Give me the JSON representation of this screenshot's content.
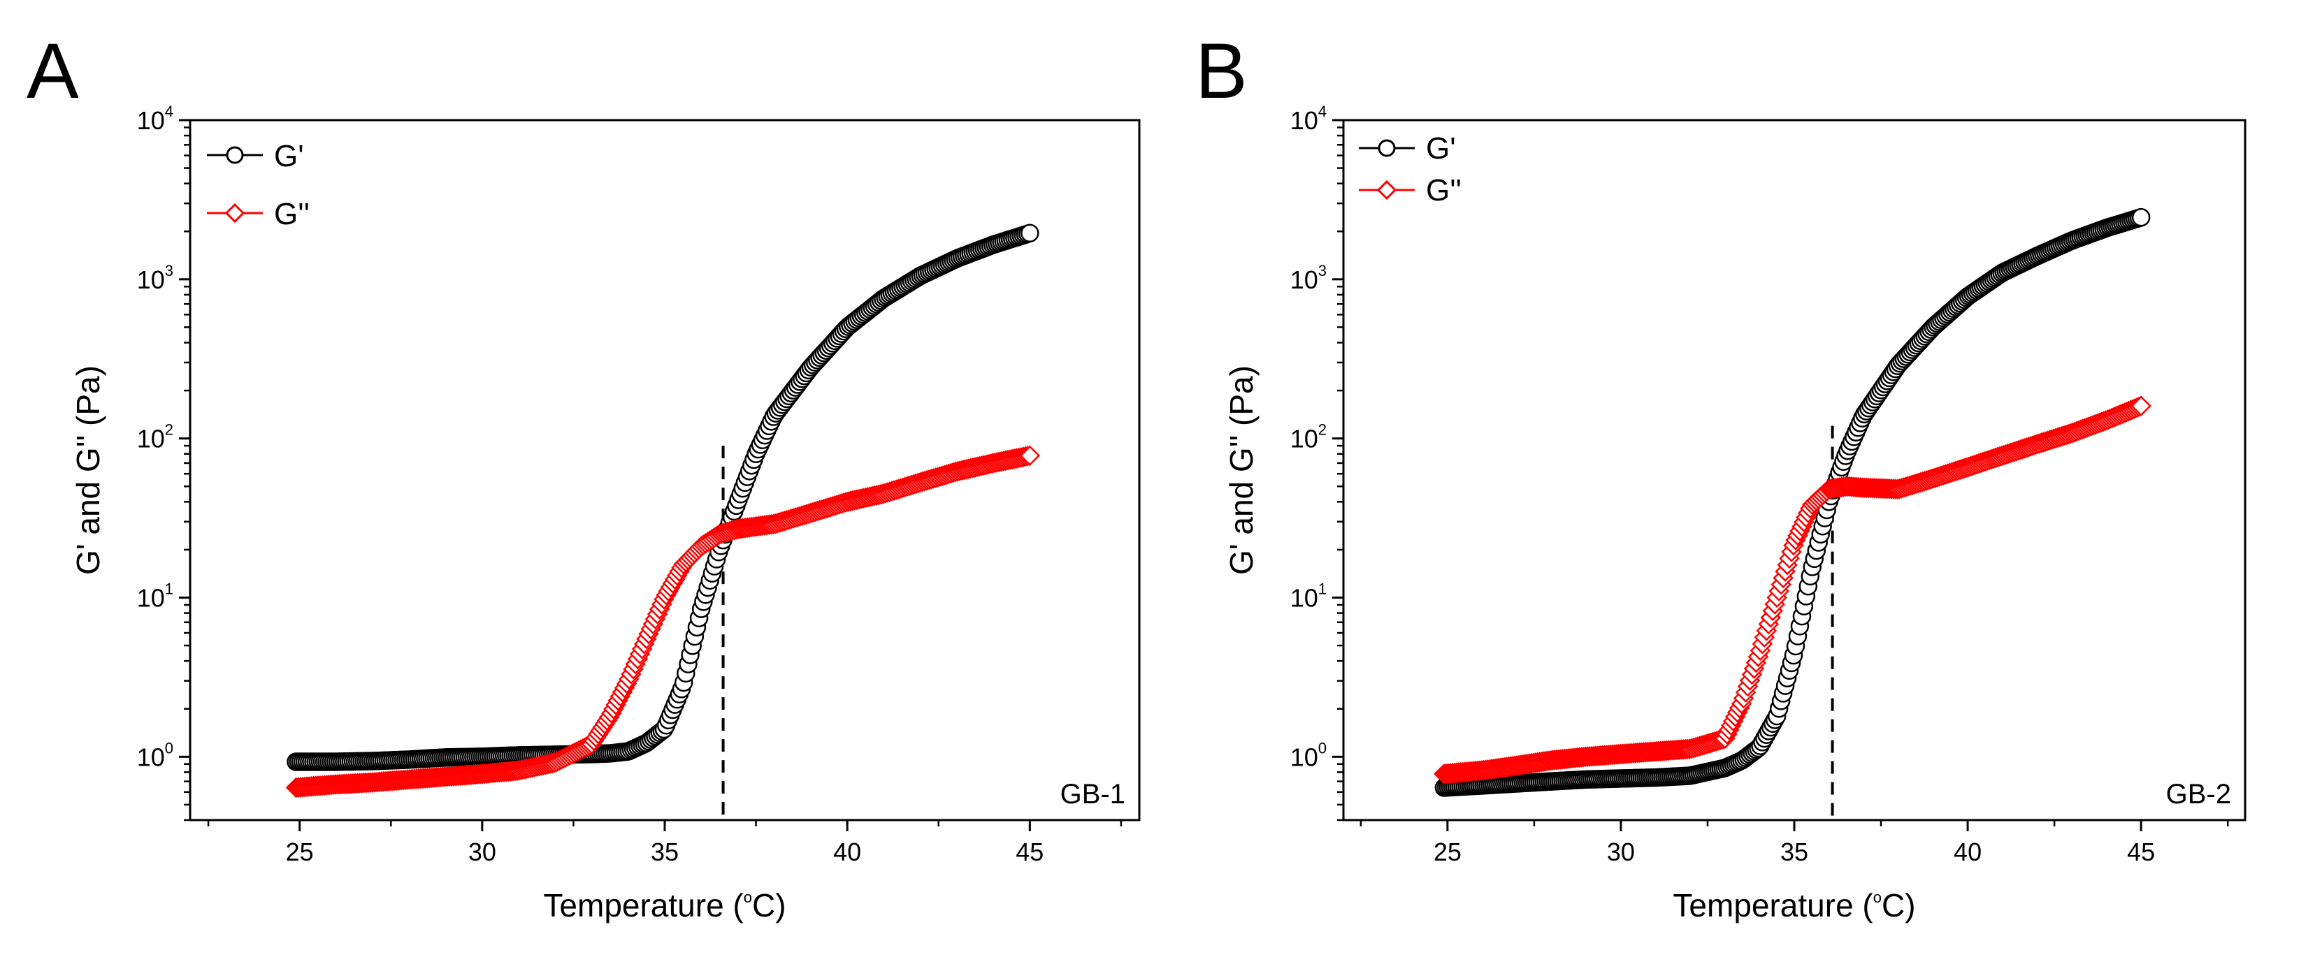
{
  "chart_data": [
    {
      "type": "scatter",
      "panel_label": "A",
      "sample_label": "GB-1",
      "xlabel": "Temperature (°C)",
      "xlabel_parts": [
        "Temperature (",
        "o",
        "C)"
      ],
      "ylabel": "G' and G'' (Pa)",
      "xlim": [
        22.0,
        48.0
      ],
      "xticks": [
        25,
        30,
        35,
        40,
        45
      ],
      "xtick_labels": [
        "25",
        "30",
        "35",
        "40",
        "45"
      ],
      "yscale": "log",
      "ylim": [
        0.4,
        10000
      ],
      "yticks": [
        1,
        10,
        100,
        1000,
        10000
      ],
      "ytick_labels": [
        {
          "base": "10",
          "exp": "0"
        },
        {
          "base": "10",
          "exp": "1"
        },
        {
          "base": "10",
          "exp": "2"
        },
        {
          "base": "10",
          "exp": "3"
        },
        {
          "base": "10",
          "exp": "4"
        }
      ],
      "legend": "top-left",
      "crossover": {
        "x": 36.6,
        "ymin": 0.4,
        "ymax": 90
      },
      "series": [
        {
          "name": "G'",
          "color": "#000000",
          "marker": "circle",
          "points": [
            [
              24.9,
              0.93
            ],
            [
              26,
              0.93
            ],
            [
              27,
              0.94
            ],
            [
              28,
              0.96
            ],
            [
              29,
              0.99
            ],
            [
              30,
              1.0
            ],
            [
              31,
              1.02
            ],
            [
              32,
              1.03
            ],
            [
              33,
              1.04
            ],
            [
              33.5,
              1.05
            ],
            [
              34,
              1.08
            ],
            [
              34.5,
              1.22
            ],
            [
              35,
              1.5
            ],
            [
              35.5,
              2.8
            ],
            [
              36,
              8.5
            ],
            [
              36.5,
              20
            ],
            [
              37,
              40
            ],
            [
              37.5,
              80
            ],
            [
              38,
              140
            ],
            [
              39,
              280
            ],
            [
              40,
              500
            ],
            [
              41,
              760
            ],
            [
              42,
              1050
            ],
            [
              43,
              1350
            ],
            [
              44,
              1650
            ],
            [
              45,
              1950
            ]
          ]
        },
        {
          "name": "G''",
          "color": "#ff0000",
          "marker": "diamond",
          "points": [
            [
              24.9,
              0.64
            ],
            [
              26,
              0.67
            ],
            [
              27,
              0.69
            ],
            [
              28,
              0.72
            ],
            [
              29,
              0.75
            ],
            [
              30,
              0.78
            ],
            [
              31,
              0.82
            ],
            [
              32,
              0.92
            ],
            [
              33,
              1.2
            ],
            [
              33.5,
              1.8
            ],
            [
              34,
              3.0
            ],
            [
              34.5,
              5.5
            ],
            [
              35,
              10
            ],
            [
              35.5,
              16
            ],
            [
              36,
              21
            ],
            [
              36.5,
              25
            ],
            [
              37,
              27
            ],
            [
              38,
              29
            ],
            [
              39,
              34
            ],
            [
              40,
              40
            ],
            [
              41,
              45
            ],
            [
              42,
              53
            ],
            [
              43,
              62
            ],
            [
              44,
              70
            ],
            [
              45,
              78
            ]
          ]
        }
      ]
    },
    {
      "type": "scatter",
      "panel_label": "B",
      "sample_label": "GB-2",
      "xlabel": "Temperature (°C)",
      "xlabel_parts": [
        "Temperature (",
        "o",
        "C)"
      ],
      "ylabel": "G' and G'' (Pa)",
      "xlim": [
        22.0,
        48.0
      ],
      "xticks": [
        25,
        30,
        35,
        40,
        45
      ],
      "xtick_labels": [
        "25",
        "30",
        "35",
        "40",
        "45"
      ],
      "yscale": "log",
      "ylim": [
        0.4,
        10000
      ],
      "yticks": [
        1,
        10,
        100,
        1000,
        10000
      ],
      "ytick_labels": [
        {
          "base": "10",
          "exp": "0"
        },
        {
          "base": "10",
          "exp": "1"
        },
        {
          "base": "10",
          "exp": "2"
        },
        {
          "base": "10",
          "exp": "3"
        },
        {
          "base": "10",
          "exp": "4"
        }
      ],
      "legend": "top-left",
      "crossover": {
        "x": 36.1,
        "ymin": 0.4,
        "ymax": 120
      },
      "series": [
        {
          "name": "G'",
          "color": "#000000",
          "marker": "circle",
          "points": [
            [
              24.9,
              0.64
            ],
            [
              26,
              0.66
            ],
            [
              27,
              0.68
            ],
            [
              28,
              0.7
            ],
            [
              29,
              0.72
            ],
            [
              30,
              0.73
            ],
            [
              31,
              0.74
            ],
            [
              32,
              0.76
            ],
            [
              33,
              0.85
            ],
            [
              33.5,
              0.95
            ],
            [
              34,
              1.15
            ],
            [
              34.5,
              1.8
            ],
            [
              35,
              4.5
            ],
            [
              35.5,
              15
            ],
            [
              36,
              40
            ],
            [
              36.5,
              80
            ],
            [
              37,
              140
            ],
            [
              38,
              290
            ],
            [
              39,
              500
            ],
            [
              40,
              780
            ],
            [
              41,
              1100
            ],
            [
              42,
              1400
            ],
            [
              43,
              1750
            ],
            [
              44,
              2100
            ],
            [
              45,
              2450
            ]
          ]
        },
        {
          "name": "G''",
          "color": "#ff0000",
          "marker": "diamond",
          "points": [
            [
              24.9,
              0.78
            ],
            [
              26,
              0.82
            ],
            [
              27,
              0.88
            ],
            [
              28,
              0.95
            ],
            [
              29,
              1.0
            ],
            [
              30,
              1.04
            ],
            [
              31,
              1.08
            ],
            [
              32,
              1.12
            ],
            [
              33,
              1.3
            ],
            [
              33.5,
              2.2
            ],
            [
              34,
              4.5
            ],
            [
              34.5,
              10
            ],
            [
              35,
              22
            ],
            [
              35.5,
              38
            ],
            [
              36,
              48
            ],
            [
              36.5,
              50
            ],
            [
              37,
              49
            ],
            [
              38,
              48
            ],
            [
              39,
              56
            ],
            [
              40,
              66
            ],
            [
              41,
              78
            ],
            [
              42,
              92
            ],
            [
              43,
              108
            ],
            [
              44,
              130
            ],
            [
              45,
              160
            ]
          ]
        }
      ]
    }
  ]
}
